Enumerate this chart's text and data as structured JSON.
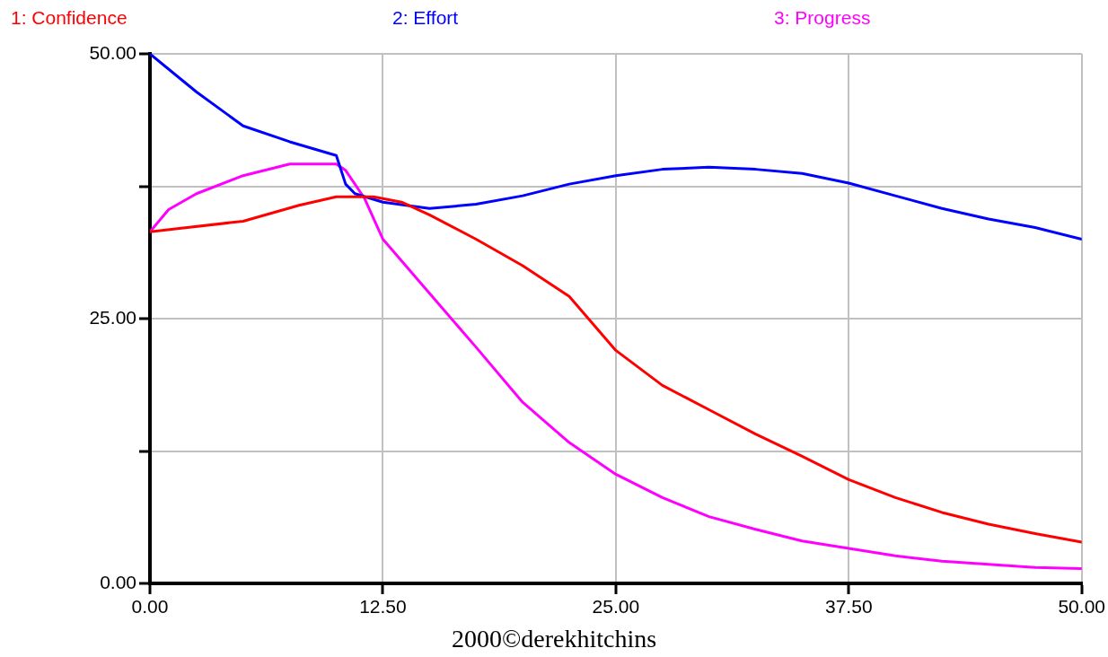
{
  "chart_data": {
    "type": "line",
    "annotations": [
      "2000©derekhitchins"
    ],
    "xlim": [
      0,
      50
    ],
    "xticks": [
      {
        "value": 0,
        "label": "0.00"
      },
      {
        "value": 12.5,
        "label": "12.50"
      },
      {
        "value": 25,
        "label": "25.00"
      },
      {
        "value": 37.5,
        "label": "37.50"
      },
      {
        "value": 50,
        "label": "50.00"
      }
    ],
    "ylim": [
      0,
      50
    ],
    "yticks": [
      {
        "value": 0,
        "label": "0.00"
      },
      {
        "value": 12.5,
        "label": null
      },
      {
        "value": 25,
        "label": "25.00"
      },
      {
        "value": 37.5,
        "label": null
      },
      {
        "value": 50,
        "label": "50.00"
      }
    ],
    "grid": true,
    "legend": "top",
    "marker": "none",
    "line_style": "solid",
    "series": [
      {
        "name": "1: Confidence",
        "color": "#ff0000",
        "x": [
          0,
          5,
          8,
          10,
          12,
          13.5,
          15,
          17.5,
          20,
          22.5,
          25,
          27.5,
          30,
          32.5,
          35,
          37.5,
          40,
          42.5,
          45,
          47.5,
          50
        ],
        "values": [
          33.2,
          34.2,
          35.7,
          36.5,
          36.5,
          36.0,
          34.8,
          32.5,
          30.0,
          27.1,
          22.0,
          18.7,
          16.4,
          14.1,
          12.0,
          9.8,
          8.1,
          6.7,
          5.6,
          4.7,
          3.9
        ]
      },
      {
        "name": "2: Effort",
        "color": "#0000ff",
        "x": [
          0,
          2.5,
          5,
          7.5,
          10,
          10.5,
          11,
          12.5,
          15,
          17.5,
          20,
          22.5,
          25,
          27.5,
          30,
          32.5,
          35,
          37.5,
          40,
          42.5,
          45,
          47.5,
          50
        ],
        "values": [
          50.0,
          46.4,
          43.2,
          41.7,
          40.4,
          37.7,
          36.8,
          36.0,
          35.4,
          35.8,
          36.6,
          37.7,
          38.5,
          39.1,
          39.3,
          39.1,
          38.7,
          37.8,
          36.6,
          35.4,
          34.4,
          33.6,
          32.5
        ]
      },
      {
        "name": "3: Progress",
        "color": "#ff00ff",
        "x": [
          0,
          1,
          2.5,
          5,
          7.5,
          10,
          10.5,
          11.5,
          12.5,
          15,
          17.5,
          20,
          22.5,
          25,
          27.5,
          30,
          32.5,
          35,
          37.5,
          40,
          42.5,
          45,
          47.5,
          50
        ],
        "values": [
          33.2,
          35.3,
          36.8,
          38.5,
          39.6,
          39.6,
          39.0,
          36.4,
          32.5,
          27.4,
          22.3,
          17.1,
          13.3,
          10.3,
          8.1,
          6.3,
          5.1,
          4.0,
          3.3,
          2.6,
          2.1,
          1.8,
          1.5,
          1.4
        ]
      }
    ]
  }
}
